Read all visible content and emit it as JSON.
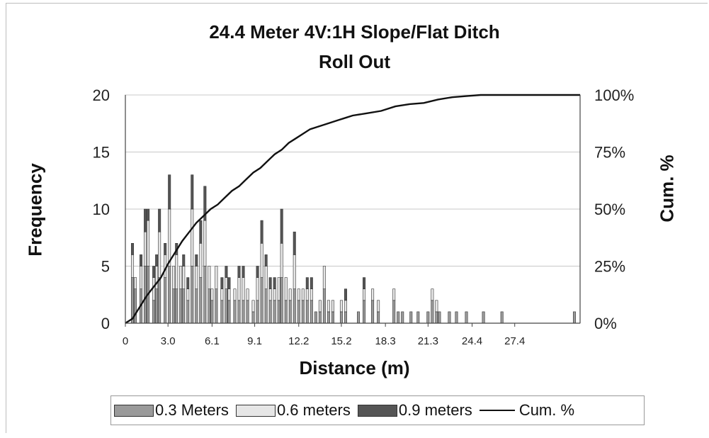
{
  "chart_data": {
    "type": "bar",
    "title": "24.4 Meter 4V:1H Slope/Flat Ditch",
    "subtitle": "Roll Out",
    "xlabel": "Distance (m)",
    "ylabel": "Frequency",
    "y2label": "Cum. %",
    "ylim": [
      0,
      20
    ],
    "y2lim": [
      0,
      1
    ],
    "yticks": [
      "0",
      "5",
      "10",
      "15",
      "20"
    ],
    "y2ticks": [
      "0%",
      "25%",
      "50%",
      "75%",
      "100%"
    ],
    "xticks": [
      "0",
      "3.0",
      "6.1",
      "9.1",
      "12.2",
      "15.2",
      "18.3",
      "21.3",
      "24.4",
      "27.4"
    ],
    "xlim": [
      0,
      32
    ],
    "stacked": true,
    "grid": true,
    "legend_position": "bottom",
    "series_names": [
      "0.3 Meters",
      "0.6 meters",
      "0.9 meters",
      "Cum. %"
    ],
    "colors": {
      "s03": "#9a9a9a",
      "s06": "#e6e6e6",
      "s09": "#555555",
      "cum": "#111111",
      "grid": "#c8c8c8"
    },
    "bars": [
      {
        "x": 0.5,
        "values": [
          4,
          2,
          1
        ]
      },
      {
        "x": 0.7,
        "values": [
          3,
          1,
          0
        ]
      },
      {
        "x": 1.1,
        "values": [
          3,
          2,
          1
        ]
      },
      {
        "x": 1.4,
        "values": [
          5,
          3,
          2
        ]
      },
      {
        "x": 1.6,
        "values": [
          5,
          4,
          1
        ]
      },
      {
        "x": 2.0,
        "values": [
          2,
          2,
          1
        ]
      },
      {
        "x": 2.2,
        "values": [
          3,
          2,
          1
        ]
      },
      {
        "x": 2.4,
        "values": [
          4,
          4,
          2
        ]
      },
      {
        "x": 2.8,
        "values": [
          4,
          2,
          1
        ]
      },
      {
        "x": 3.1,
        "values": [
          5,
          5,
          3
        ]
      },
      {
        "x": 3.4,
        "values": [
          3,
          2,
          0
        ]
      },
      {
        "x": 3.6,
        "values": [
          3,
          3,
          1
        ]
      },
      {
        "x": 3.9,
        "values": [
          3,
          2,
          0
        ]
      },
      {
        "x": 4.1,
        "values": [
          3,
          2,
          1
        ]
      },
      {
        "x": 4.4,
        "values": [
          2,
          1,
          1
        ]
      },
      {
        "x": 4.7,
        "values": [
          5,
          5,
          3
        ]
      },
      {
        "x": 5.0,
        "values": [
          3,
          2,
          1
        ]
      },
      {
        "x": 5.3,
        "values": [
          4,
          3,
          2
        ]
      },
      {
        "x": 5.6,
        "values": [
          5,
          4,
          3
        ]
      },
      {
        "x": 5.9,
        "values": [
          3,
          2,
          0
        ]
      },
      {
        "x": 6.1,
        "values": [
          2,
          1,
          0
        ]
      },
      {
        "x": 6.4,
        "values": [
          3,
          2,
          0
        ]
      },
      {
        "x": 6.8,
        "values": [
          2,
          1,
          1
        ]
      },
      {
        "x": 7.1,
        "values": [
          3,
          1,
          1
        ]
      },
      {
        "x": 7.3,
        "values": [
          2,
          1,
          1
        ]
      },
      {
        "x": 7.7,
        "values": [
          2,
          1,
          0
        ]
      },
      {
        "x": 8.0,
        "values": [
          2,
          2,
          1
        ]
      },
      {
        "x": 8.3,
        "values": [
          2,
          2,
          1
        ]
      },
      {
        "x": 8.6,
        "values": [
          2,
          1,
          0
        ]
      },
      {
        "x": 9.0,
        "values": [
          1,
          1,
          0
        ]
      },
      {
        "x": 9.3,
        "values": [
          2,
          2,
          1
        ]
      },
      {
        "x": 9.6,
        "values": [
          4,
          3,
          2
        ]
      },
      {
        "x": 9.9,
        "values": [
          3,
          2,
          1
        ]
      },
      {
        "x": 10.2,
        "values": [
          2,
          1,
          1
        ]
      },
      {
        "x": 10.5,
        "values": [
          2,
          1,
          1
        ]
      },
      {
        "x": 10.8,
        "values": [
          2,
          2,
          0
        ]
      },
      {
        "x": 11.0,
        "values": [
          4,
          3,
          3
        ]
      },
      {
        "x": 11.3,
        "values": [
          2,
          2,
          0
        ]
      },
      {
        "x": 11.6,
        "values": [
          2,
          1,
          0
        ]
      },
      {
        "x": 11.9,
        "values": [
          3,
          3,
          2
        ]
      },
      {
        "x": 12.2,
        "values": [
          2,
          1,
          0
        ]
      },
      {
        "x": 12.5,
        "values": [
          2,
          1,
          0
        ]
      },
      {
        "x": 12.8,
        "values": [
          2,
          1,
          1
        ]
      },
      {
        "x": 13.1,
        "values": [
          2,
          1,
          1
        ]
      },
      {
        "x": 13.4,
        "values": [
          1,
          0,
          0
        ]
      },
      {
        "x": 13.7,
        "values": [
          1,
          1,
          0
        ]
      },
      {
        "x": 14.0,
        "values": [
          3,
          2,
          0
        ]
      },
      {
        "x": 14.3,
        "values": [
          1,
          1,
          0
        ]
      },
      {
        "x": 14.6,
        "values": [
          1,
          1,
          0
        ]
      },
      {
        "x": 15.2,
        "values": [
          1,
          1,
          0
        ]
      },
      {
        "x": 15.5,
        "values": [
          1,
          1,
          1
        ]
      },
      {
        "x": 16.4,
        "values": [
          1,
          0,
          0
        ]
      },
      {
        "x": 16.8,
        "values": [
          2,
          1,
          1
        ]
      },
      {
        "x": 17.4,
        "values": [
          2,
          1,
          0
        ]
      },
      {
        "x": 17.8,
        "values": [
          1,
          1,
          0
        ]
      },
      {
        "x": 18.9,
        "values": [
          2,
          1,
          0
        ]
      },
      {
        "x": 19.2,
        "values": [
          1,
          0,
          0
        ]
      },
      {
        "x": 19.5,
        "values": [
          1,
          0,
          0
        ]
      },
      {
        "x": 20.1,
        "values": [
          1,
          0,
          0
        ]
      },
      {
        "x": 20.6,
        "values": [
          1,
          0,
          0
        ]
      },
      {
        "x": 21.3,
        "values": [
          1,
          0,
          0
        ]
      },
      {
        "x": 21.6,
        "values": [
          2,
          1,
          0
        ]
      },
      {
        "x": 21.9,
        "values": [
          1,
          1,
          0
        ]
      },
      {
        "x": 22.1,
        "values": [
          1,
          0,
          0
        ]
      },
      {
        "x": 22.8,
        "values": [
          1,
          0,
          0
        ]
      },
      {
        "x": 23.3,
        "values": [
          1,
          0,
          0
        ]
      },
      {
        "x": 24.0,
        "values": [
          1,
          0,
          0
        ]
      },
      {
        "x": 25.2,
        "values": [
          1,
          0,
          0
        ]
      },
      {
        "x": 26.5,
        "values": [
          1,
          0,
          0
        ]
      },
      {
        "x": 31.6,
        "values": [
          1,
          0,
          0
        ]
      }
    ],
    "cumulative": [
      {
        "x": 0,
        "y": 0
      },
      {
        "x": 0.5,
        "y": 0.02
      },
      {
        "x": 1.0,
        "y": 0.07
      },
      {
        "x": 1.5,
        "y": 0.12
      },
      {
        "x": 2.0,
        "y": 0.16
      },
      {
        "x": 2.5,
        "y": 0.2
      },
      {
        "x": 3.0,
        "y": 0.26
      },
      {
        "x": 3.5,
        "y": 0.31
      },
      {
        "x": 4.0,
        "y": 0.36
      },
      {
        "x": 4.5,
        "y": 0.4
      },
      {
        "x": 5.0,
        "y": 0.44
      },
      {
        "x": 5.5,
        "y": 0.47
      },
      {
        "x": 6.0,
        "y": 0.5
      },
      {
        "x": 6.5,
        "y": 0.52
      },
      {
        "x": 7.0,
        "y": 0.55
      },
      {
        "x": 7.5,
        "y": 0.58
      },
      {
        "x": 8.0,
        "y": 0.6
      },
      {
        "x": 8.5,
        "y": 0.63
      },
      {
        "x": 9.0,
        "y": 0.66
      },
      {
        "x": 9.5,
        "y": 0.68
      },
      {
        "x": 10.0,
        "y": 0.71
      },
      {
        "x": 10.5,
        "y": 0.74
      },
      {
        "x": 11.0,
        "y": 0.76
      },
      {
        "x": 11.5,
        "y": 0.79
      },
      {
        "x": 12.0,
        "y": 0.81
      },
      {
        "x": 12.5,
        "y": 0.83
      },
      {
        "x": 13.0,
        "y": 0.85
      },
      {
        "x": 13.5,
        "y": 0.86
      },
      {
        "x": 14.0,
        "y": 0.87
      },
      {
        "x": 14.5,
        "y": 0.88
      },
      {
        "x": 15.0,
        "y": 0.89
      },
      {
        "x": 15.5,
        "y": 0.9
      },
      {
        "x": 16.0,
        "y": 0.91
      },
      {
        "x": 17.0,
        "y": 0.92
      },
      {
        "x": 18.0,
        "y": 0.93
      },
      {
        "x": 19.0,
        "y": 0.95
      },
      {
        "x": 20.0,
        "y": 0.96
      },
      {
        "x": 21.0,
        "y": 0.965
      },
      {
        "x": 22.0,
        "y": 0.98
      },
      {
        "x": 23.0,
        "y": 0.99
      },
      {
        "x": 24.0,
        "y": 0.995
      },
      {
        "x": 25.0,
        "y": 1.0
      },
      {
        "x": 32.0,
        "y": 1.0
      }
    ]
  }
}
